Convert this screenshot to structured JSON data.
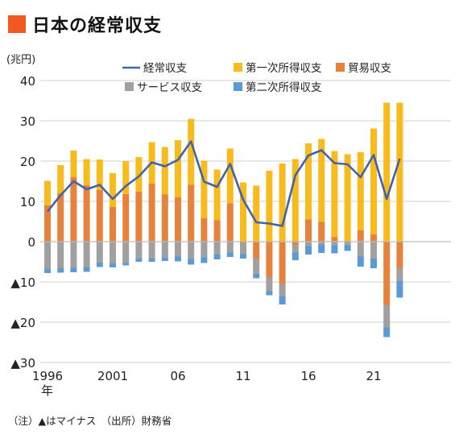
{
  "title": "日本の経常収支",
  "footnote": "（注）▲はマイナス　（出所）財務省",
  "colors": {
    "title_mark": "#f05a22",
    "current_account": "#3f64a8",
    "primary_income": "#f7bb1d",
    "trade": "#e6823b",
    "services": "#a0a0a0",
    "secondary_income": "#5b9bd5"
  },
  "chart_data": {
    "type": "bar",
    "stacked": true,
    "ylabel": "(兆円)",
    "xlabel": "年",
    "ylim": [
      -30,
      40
    ],
    "yticks": [
      40,
      30,
      20,
      10,
      0,
      -10,
      -20,
      -30
    ],
    "ytick_labels": [
      "40",
      "30",
      "20",
      "10",
      "0",
      "▲10",
      "▲20",
      "▲30"
    ],
    "xtick_years": [
      1996,
      2001,
      2006,
      2011,
      2016,
      2021
    ],
    "xtick_labels": [
      "1996",
      "2001",
      "06",
      "11",
      "16",
      "21"
    ],
    "grid": true,
    "legend_position": "top",
    "categories": [
      1996,
      1997,
      1998,
      1999,
      2000,
      2001,
      2002,
      2003,
      2004,
      2005,
      2006,
      2007,
      2008,
      2009,
      2010,
      2011,
      2012,
      2013,
      2014,
      2015,
      2016,
      2017,
      2018,
      2019,
      2020,
      2021,
      2022,
      2023
    ],
    "series": [
      {
        "key": "trade",
        "name": "貿易収支",
        "kind": "bar",
        "values": [
          9.0,
          12.0,
          16.0,
          14.0,
          12.8,
          8.6,
          11.8,
          12.4,
          14.4,
          11.7,
          11.0,
          14.1,
          5.8,
          5.3,
          9.5,
          -0.3,
          -4.2,
          -8.8,
          -10.5,
          -0.8,
          5.5,
          4.9,
          1.1,
          0.2,
          2.8,
          1.8,
          -15.7,
          -6.5
        ]
      },
      {
        "key": "primary_income",
        "name": "第一次所得収支",
        "kind": "bar",
        "values": [
          6.1,
          7.0,
          6.6,
          6.5,
          7.6,
          8.4,
          8.2,
          8.6,
          10.3,
          11.8,
          14.2,
          16.4,
          14.3,
          12.6,
          13.6,
          14.7,
          13.9,
          17.6,
          19.4,
          20.5,
          18.9,
          20.6,
          21.4,
          21.5,
          19.4,
          26.3,
          34.5,
          34.5
        ]
      },
      {
        "key": "services",
        "name": "サービス収支",
        "kind": "bar",
        "values": [
          -6.8,
          -6.6,
          -6.5,
          -6.3,
          -5.2,
          -5.4,
          -5.3,
          -4.2,
          -4.2,
          -4.0,
          -3.7,
          -4.3,
          -3.9,
          -3.2,
          -2.7,
          -2.8,
          -3.8,
          -3.5,
          -3.1,
          -1.9,
          -1.1,
          -0.7,
          -0.9,
          -0.9,
          -3.7,
          -4.2,
          -5.6,
          -3.3
        ]
      },
      {
        "key": "secondary_income",
        "name": "第二次所得収支",
        "kind": "bar",
        "values": [
          -1.0,
          -1.1,
          -1.1,
          -1.2,
          -1.1,
          -1.0,
          -0.6,
          -0.8,
          -0.8,
          -0.8,
          -1.2,
          -1.4,
          -1.4,
          -1.2,
          -1.1,
          -1.1,
          -1.1,
          -1.0,
          -2.0,
          -1.9,
          -2.1,
          -2.1,
          -2.0,
          -1.4,
          -2.5,
          -2.4,
          -2.4,
          -4.1
        ]
      },
      {
        "key": "current_account",
        "name": "経常収支",
        "kind": "line",
        "values": [
          7.5,
          11.5,
          15.0,
          13.0,
          14.1,
          10.6,
          13.8,
          16.2,
          19.7,
          18.7,
          20.3,
          24.9,
          14.9,
          13.6,
          19.3,
          10.4,
          4.8,
          4.5,
          3.9,
          16.5,
          21.4,
          22.7,
          19.5,
          19.2,
          16.0,
          21.5,
          10.6,
          20.6
        ]
      }
    ]
  }
}
